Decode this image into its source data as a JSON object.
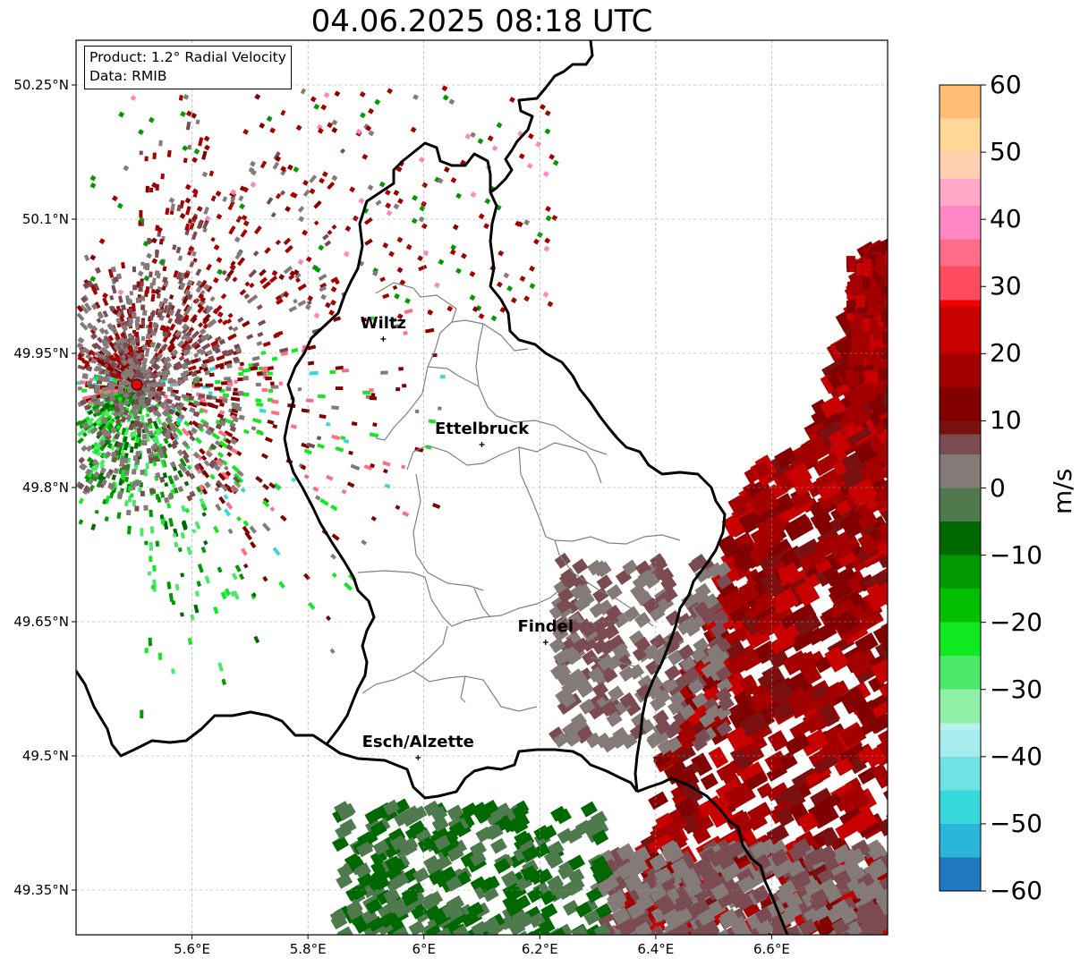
{
  "title": "04.06.2025 08:18 UTC",
  "info": {
    "product": "Product: 1.2° Radial Velocity",
    "data": "Data: RMIB"
  },
  "axes": {
    "y_labels": [
      "50.25°N",
      "50.1°N",
      "49.95°N",
      "49.8°N",
      "49.65°N",
      "49.5°N",
      "49.35°N"
    ],
    "x_labels": [
      "5.6°E",
      "5.8°E",
      "6°E",
      "6.2°E",
      "6.4°E",
      "6.6°E"
    ],
    "lon_range": [
      5.4,
      6.8
    ],
    "lat_range": [
      49.3,
      50.3
    ],
    "grid": true
  },
  "cities": [
    {
      "name": "Wiltz",
      "lon": 5.93,
      "lat": 49.966
    },
    {
      "name": "Ettelbruck",
      "lon": 6.1,
      "lat": 49.848
    },
    {
      "name": "Findel",
      "lon": 6.21,
      "lat": 49.627
    },
    {
      "name": "Esch/Alzette",
      "lon": 5.99,
      "lat": 49.498
    }
  ],
  "radar_site": {
    "lon": 5.505,
    "lat": 49.915,
    "color": "#e60000"
  },
  "colorbar": {
    "unit": "m/s",
    "min": -60,
    "max": 60,
    "tick_labels": [
      "60",
      "50",
      "40",
      "30",
      "20",
      "10",
      "0",
      "−10",
      "−20",
      "−30",
      "−40",
      "−50",
      "−60"
    ],
    "stops": [
      {
        "v": -60,
        "c": "#1f78c0"
      },
      {
        "v": -55,
        "c": "#2ab6d8"
      },
      {
        "v": -50,
        "c": "#38d9dc"
      },
      {
        "v": -45,
        "c": "#6fe2e4"
      },
      {
        "v": -40,
        "c": "#a6ecec"
      },
      {
        "v": -36,
        "c": "#baf0f0"
      },
      {
        "v": -35,
        "c": "#90f0a8"
      },
      {
        "v": -30,
        "c": "#4ce86a"
      },
      {
        "v": -25,
        "c": "#10e820"
      },
      {
        "v": -20,
        "c": "#00c000"
      },
      {
        "v": -15,
        "c": "#009a00"
      },
      {
        "v": -10,
        "c": "#006800"
      },
      {
        "v": -5,
        "c": "#4e7a4e"
      },
      {
        "v": 0,
        "c": "#847a78"
      },
      {
        "v": 5,
        "c": "#7a4c52"
      },
      {
        "v": 8,
        "c": "#7a1010"
      },
      {
        "v": 10,
        "c": "#820000"
      },
      {
        "v": 15,
        "c": "#a40000"
      },
      {
        "v": 20,
        "c": "#c80000"
      },
      {
        "v": 27,
        "c": "#f00000"
      },
      {
        "v": 28,
        "c": "#ff4a60"
      },
      {
        "v": 33,
        "c": "#ff6c88"
      },
      {
        "v": 37,
        "c": "#ff86c4"
      },
      {
        "v": 42,
        "c": "#ffa8c8"
      },
      {
        "v": 46,
        "c": "#ffd0b0"
      },
      {
        "v": 50,
        "c": "#ffd898"
      },
      {
        "v": 55,
        "c": "#ffbe74"
      },
      {
        "v": 60,
        "c": "#ff9e54"
      }
    ]
  }
}
